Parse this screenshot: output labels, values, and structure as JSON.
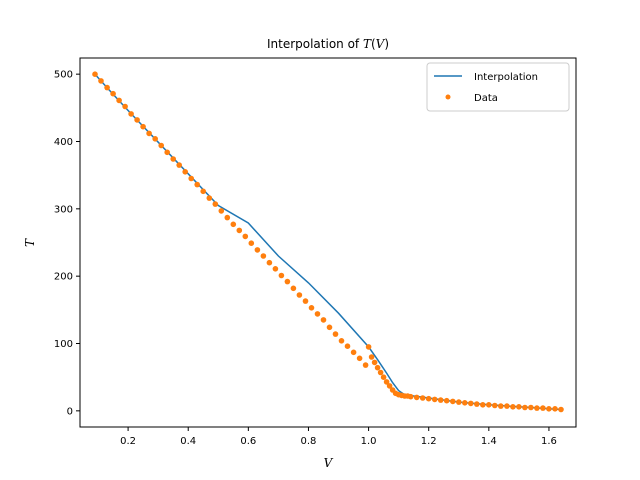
{
  "chart_data": {
    "type": "line",
    "title": "Interpolation of T(V)",
    "xlabel": "V",
    "ylabel": "T",
    "xlim": [
      0.04,
      1.69
    ],
    "ylim": [
      -24,
      524
    ],
    "xticks": [
      0.2,
      0.4,
      0.6,
      0.8,
      1.0,
      1.2,
      1.4,
      1.6
    ],
    "xtick_labels": [
      "0.2",
      "0.4",
      "0.6",
      "0.8",
      "1.0",
      "1.2",
      "1.4",
      "1.6"
    ],
    "yticks": [
      0,
      100,
      200,
      300,
      400,
      500
    ],
    "ytick_labels": [
      "0",
      "100",
      "200",
      "300",
      "400",
      "500"
    ],
    "grid": false,
    "legend_position": "top-right",
    "colors": {
      "interpolation": "#1f77b4",
      "data": "#ff7f0e"
    },
    "series": [
      {
        "name": "Interpolation",
        "kind": "line",
        "x": [
          0.09,
          0.14,
          0.2,
          0.3,
          0.4,
          0.5,
          0.6,
          0.7,
          0.8,
          0.9,
          1.0,
          1.03,
          1.06,
          1.08,
          1.1,
          1.12,
          1.15,
          1.2,
          1.3,
          1.4,
          1.5,
          1.6,
          1.64
        ],
        "y": [
          500,
          475,
          446,
          399,
          352,
          305,
          279,
          230,
          190,
          145,
          95,
          76,
          56,
          42,
          30,
          24,
          22,
          19,
          13,
          9,
          6,
          3,
          2
        ]
      },
      {
        "name": "Data",
        "kind": "points",
        "x": [
          0.09,
          0.11,
          0.13,
          0.15,
          0.17,
          0.19,
          0.21,
          0.23,
          0.25,
          0.27,
          0.29,
          0.31,
          0.33,
          0.35,
          0.37,
          0.39,
          0.41,
          0.43,
          0.45,
          0.47,
          0.49,
          0.51,
          0.53,
          0.55,
          0.57,
          0.59,
          0.61,
          0.63,
          0.65,
          0.67,
          0.69,
          0.71,
          0.73,
          0.75,
          0.77,
          0.79,
          0.81,
          0.83,
          0.85,
          0.87,
          0.89,
          0.91,
          0.93,
          0.95,
          0.97,
          0.99,
          1.0,
          1.01,
          1.02,
          1.03,
          1.04,
          1.05,
          1.06,
          1.07,
          1.08,
          1.09,
          1.1,
          1.11,
          1.12,
          1.13,
          1.14,
          1.16,
          1.18,
          1.2,
          1.22,
          1.24,
          1.26,
          1.28,
          1.3,
          1.32,
          1.34,
          1.36,
          1.38,
          1.4,
          1.42,
          1.44,
          1.46,
          1.48,
          1.5,
          1.52,
          1.54,
          1.56,
          1.58,
          1.6,
          1.62,
          1.64
        ],
        "y": [
          500,
          490,
          480,
          471,
          461,
          452,
          441,
          432,
          422,
          412,
          404,
          394,
          384,
          374,
          365,
          355,
          345,
          336,
          326,
          316,
          307,
          297,
          287,
          277,
          268,
          259,
          249,
          239,
          230,
          220,
          211,
          201,
          192,
          182,
          172,
          163,
          153,
          144,
          135,
          124,
          114,
          104,
          96,
          87,
          78,
          68,
          95,
          80,
          72,
          64,
          57,
          50,
          43,
          37,
          31,
          26,
          24,
          23,
          22,
          22,
          21,
          20,
          19,
          18,
          17,
          16,
          15,
          14,
          13,
          12,
          11,
          10,
          9,
          9,
          8,
          7,
          7,
          6,
          6,
          5,
          5,
          4,
          4,
          3,
          3,
          2
        ]
      }
    ]
  }
}
